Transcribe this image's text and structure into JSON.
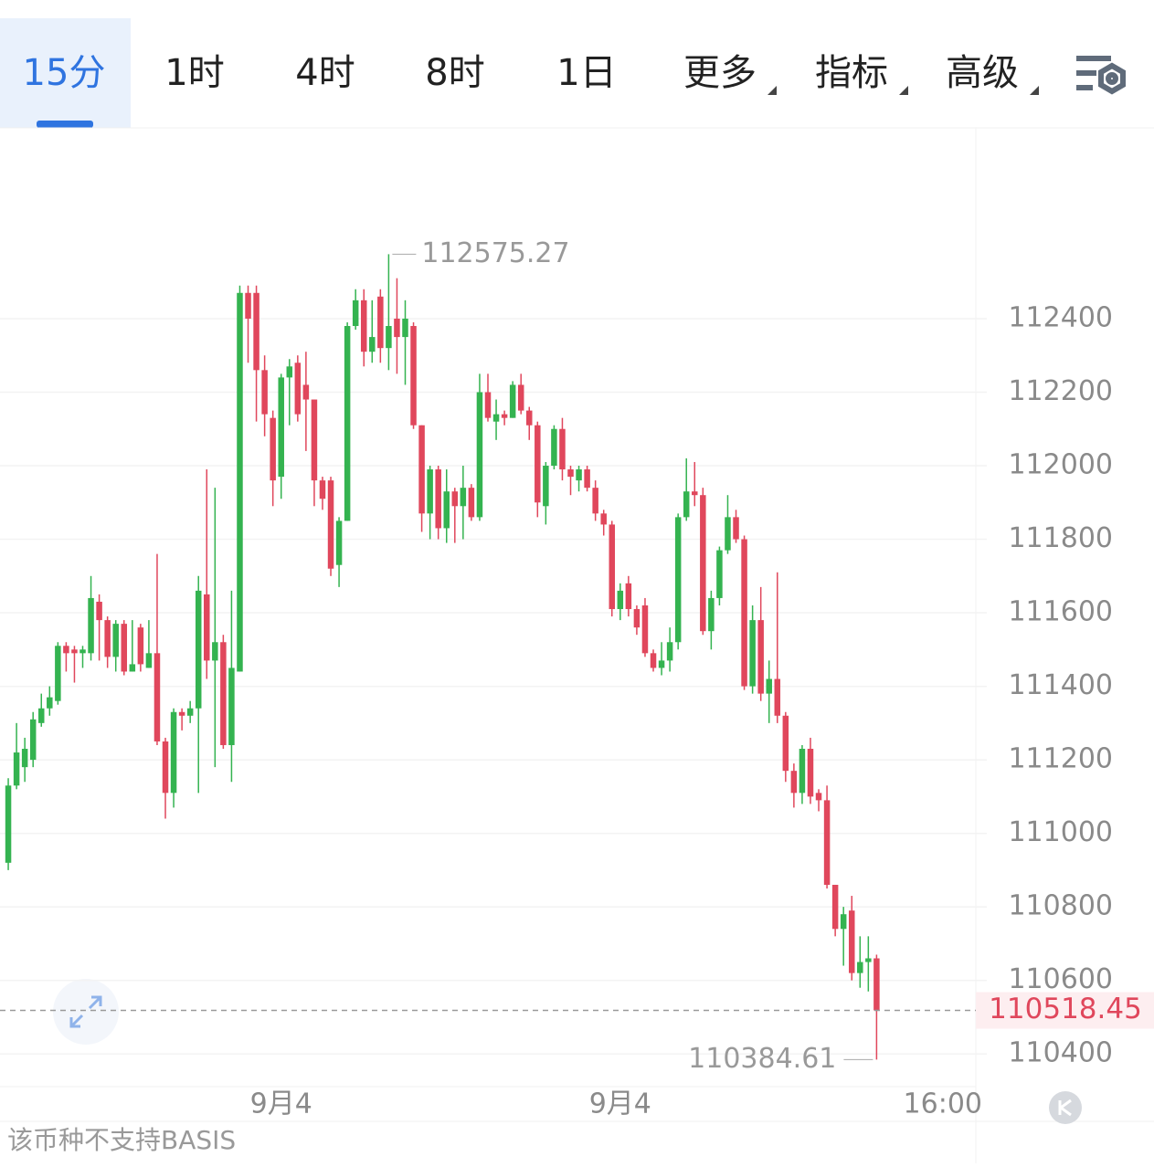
{
  "tabs": [
    "15分",
    "1时",
    "4时",
    "8时",
    "1日",
    "更多",
    "指标",
    "高级"
  ],
  "footer": "该币种不支持BASIS",
  "chart_data": {
    "type": "candlestick",
    "up_color": "#34b350",
    "down_color": "#e0475c",
    "xlim": [
      -1,
      117
    ],
    "xticks": [
      {
        "value": 33,
        "label": "9月4"
      },
      {
        "value": 74,
        "label": "9月4"
      },
      {
        "value": 113,
        "label": "16:00"
      }
    ],
    "ylim": [
      110316,
      112919
    ],
    "yticks": [
      110400,
      110600,
      110800,
      111000,
      111200,
      111400,
      111600,
      111800,
      112000,
      112200,
      112400
    ],
    "grid": true,
    "open": [
      110920,
      111130,
      111180,
      111200,
      111300,
      111340,
      111360,
      111510,
      111500,
      111490,
      111490,
      111630,
      111580,
      111480,
      111570,
      111440,
      111560,
      111450,
      111490,
      111250,
      111110,
      111330,
      111320,
      111340,
      111650,
      111470,
      111520,
      111240,
      111440,
      112470,
      112470,
      112260,
      112130,
      111970,
      112240,
      112280,
      112220,
      112180,
      111960,
      111960,
      111730,
      111850,
      112380,
      112450,
      112310,
      112460,
      112320,
      112400,
      112350,
      112380,
      112110,
      111870,
      111990,
      111830,
      111930,
      111890,
      111940,
      111860,
      112200,
      112120,
      112140,
      112130,
      112220,
      112150,
      112110,
      111890,
      112000,
      112100,
      111990,
      111960,
      111990,
      111940,
      111870,
      111840,
      111610,
      111680,
      111610,
      111620,
      111490,
      111450,
      111470,
      111520,
      111860,
      111930,
      111920,
      111550,
      111640,
      111770,
      111860,
      111800,
      111400,
      111580,
      111380,
      111420,
      111320,
      111170,
      111110,
      111230,
      111110,
      111090,
      110860,
      110740,
      110790,
      110620,
      110650,
      110660
    ],
    "high": [
      111150,
      111300,
      111260,
      111330,
      111380,
      111400,
      111520,
      111520,
      111510,
      111510,
      111700,
      111650,
      111590,
      111580,
      111580,
      111580,
      111570,
      111580,
      111760,
      111260,
      111340,
      111340,
      111360,
      111700,
      111990,
      111940,
      111540,
      111660,
      112490,
      112490,
      112490,
      112300,
      112150,
      112250,
      112290,
      112300,
      112310,
      112180,
      111970,
      111970,
      111860,
      112390,
      112480,
      112480,
      112450,
      112480,
      112575.27,
      112510,
      112450,
      112390,
      112110,
      112000,
      112000,
      111990,
      111940,
      112000,
      111950,
      112250,
      112250,
      112180,
      112150,
      112230,
      112250,
      112160,
      112120,
      112010,
      112110,
      112130,
      112000,
      112000,
      112000,
      111960,
      111880,
      111850,
      111680,
      111700,
      111620,
      111640,
      111500,
      111520,
      111560,
      111870,
      112020,
      112010,
      111940,
      111660,
      111780,
      111920,
      111880,
      111810,
      111620,
      111670,
      111470,
      111710,
      111330,
      111190,
      111240,
      111260,
      111120,
      111130,
      110860,
      110800,
      110830,
      110720,
      110720,
      110670
    ],
    "low": [
      110900,
      111120,
      111140,
      111180,
      111290,
      111320,
      111350,
      111440,
      111410,
      111450,
      111470,
      111470,
      111450,
      111440,
      111430,
      111440,
      111440,
      111450,
      111240,
      111040,
      111070,
      111280,
      111300,
      111110,
      111420,
      111180,
      111230,
      111140,
      111440,
      112280,
      112120,
      112080,
      111890,
      111910,
      112110,
      112120,
      112040,
      111890,
      111880,
      111700,
      111670,
      111850,
      112370,
      112270,
      112280,
      112280,
      112260,
      112250,
      112220,
      112100,
      111820,
      111800,
      111800,
      111790,
      111790,
      111800,
      111850,
      111850,
      112120,
      112070,
      112110,
      112130,
      112140,
      112070,
      111860,
      111840,
      111990,
      111960,
      111920,
      111930,
      111930,
      111850,
      111810,
      111590,
      111580,
      111590,
      111540,
      111480,
      111440,
      111430,
      111440,
      111500,
      111850,
      111890,
      111540,
      111500,
      111620,
      111760,
      111790,
      111390,
      111380,
      111360,
      111300,
      111300,
      111140,
      111070,
      111080,
      111080,
      111060,
      110850,
      110720,
      110640,
      110600,
      110580,
      110570,
      110384.61
    ],
    "close": [
      111130,
      111220,
      111230,
      111310,
      111340,
      111370,
      111510,
      111490,
      111490,
      111500,
      111640,
      111580,
      111480,
      111570,
      111440,
      111460,
      111460,
      111490,
      111250,
      111110,
      111330,
      111320,
      111340,
      111660,
      111470,
      111520,
      111240,
      111450,
      112470,
      112400,
      112260,
      112140,
      111960,
      112240,
      112270,
      112140,
      112180,
      111960,
      111910,
      111720,
      111850,
      112380,
      112450,
      112310,
      112350,
      112320,
      112380,
      112350,
      112400,
      112110,
      111870,
      111990,
      111830,
      111930,
      111890,
      111940,
      111860,
      112200,
      112130,
      112140,
      112130,
      112220,
      112150,
      112110,
      111900,
      112000,
      112100,
      111990,
      111970,
      111990,
      111940,
      111870,
      111840,
      111610,
      111660,
      111610,
      111560,
      111490,
      111450,
      111470,
      111520,
      111860,
      111930,
      111920,
      111550,
      111640,
      111770,
      111860,
      111800,
      111400,
      111580,
      111380,
      111420,
      111320,
      111170,
      111110,
      111230,
      111100,
      111090,
      110860,
      110740,
      110780,
      110620,
      110650,
      110660,
      110518.45
    ]
  }
}
